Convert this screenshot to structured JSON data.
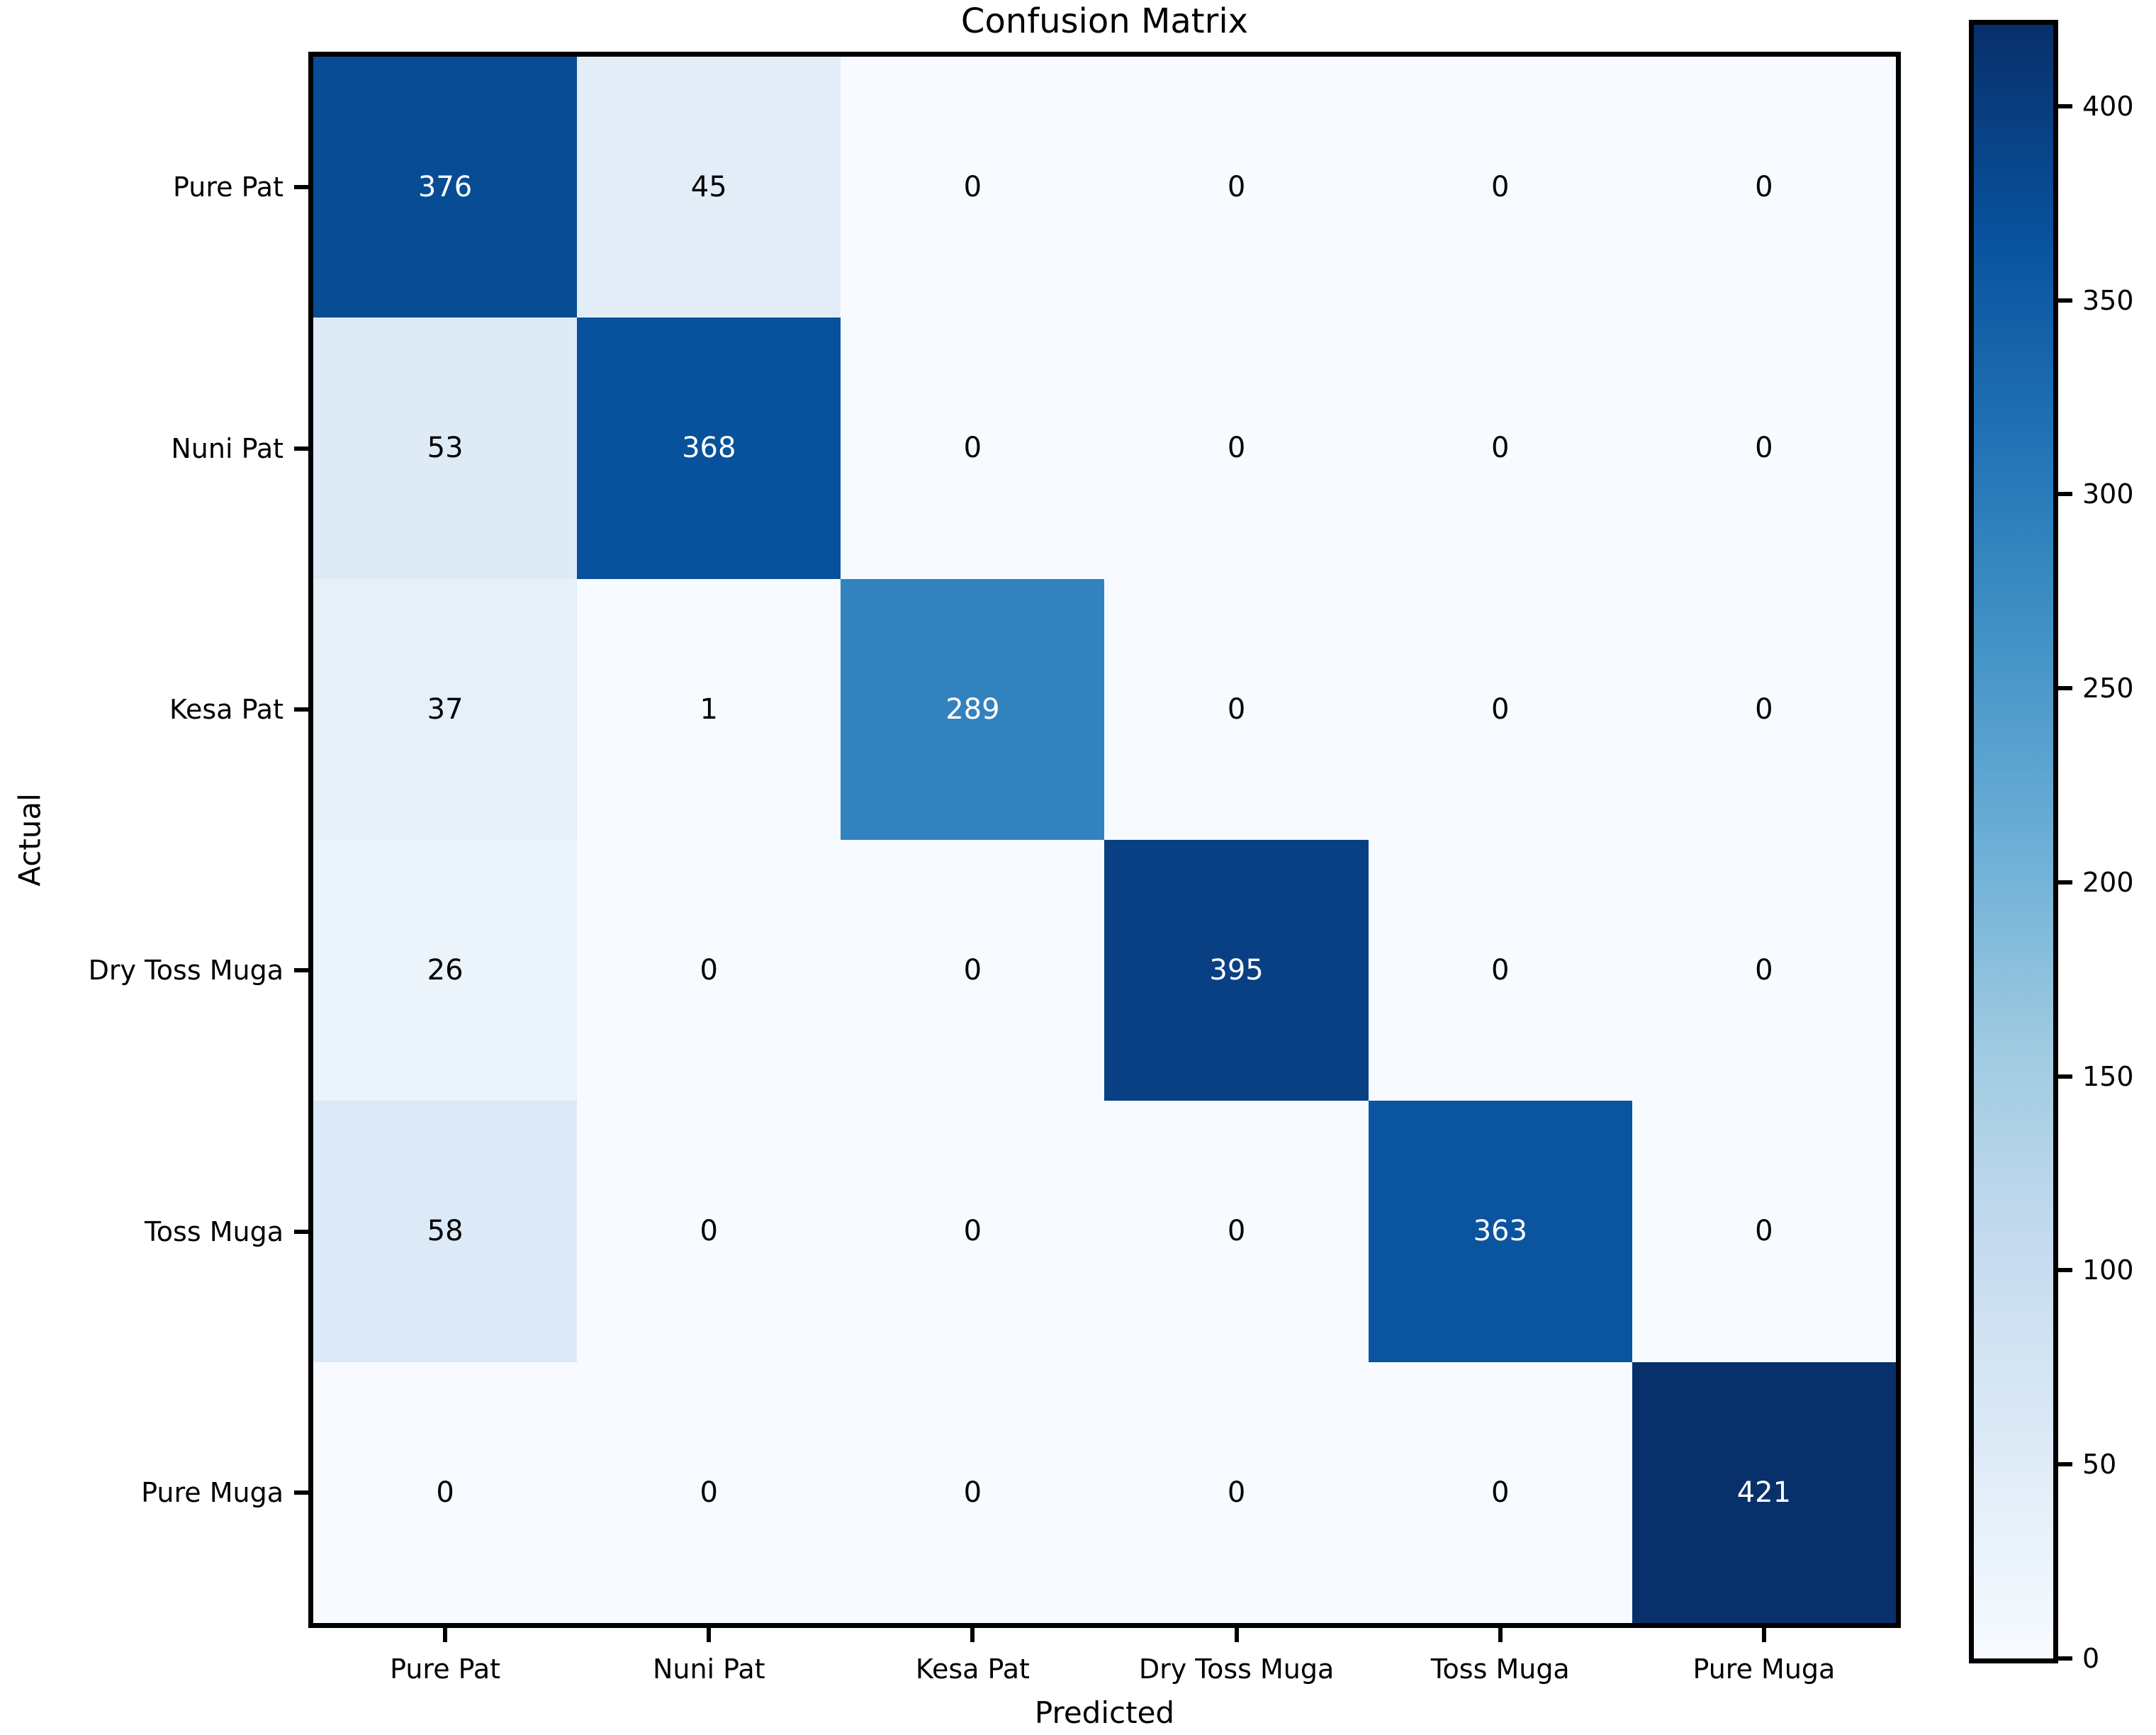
{
  "chart_data": {
    "type": "heatmap",
    "title": "Confusion Matrix",
    "xlabel": "Predicted",
    "ylabel": "Actual",
    "x_tick_labels": [
      "Pure Pat",
      "Nuni Pat",
      "Kesa Pat",
      "Dry Toss Muga",
      "Toss Muga",
      "Pure Muga"
    ],
    "y_tick_labels": [
      "Pure Pat",
      "Nuni Pat",
      "Kesa Pat",
      "Dry Toss Muga",
      "Toss Muga",
      "Pure Muga"
    ],
    "matrix": [
      [
        376,
        45,
        0,
        0,
        0,
        0
      ],
      [
        53,
        368,
        0,
        0,
        0,
        0
      ],
      [
        37,
        1,
        289,
        0,
        0,
        0
      ],
      [
        26,
        0,
        0,
        395,
        0,
        0
      ],
      [
        58,
        0,
        0,
        0,
        363,
        0
      ],
      [
        0,
        0,
        0,
        0,
        0,
        421
      ]
    ],
    "vmin": 0,
    "vmax": 421,
    "colormap": "Blues",
    "colorbar_ticks": [
      0,
      50,
      100,
      150,
      200,
      250,
      300,
      350,
      400
    ],
    "legend_position": "right-colorbar",
    "grid": false,
    "colors": {
      "background": "#ffffff",
      "frame": "#000000",
      "cmap_low": "#f7fbff",
      "cmap_high": "#08306b",
      "annotation_dark": "#000000",
      "annotation_light": "#ffffff"
    }
  }
}
